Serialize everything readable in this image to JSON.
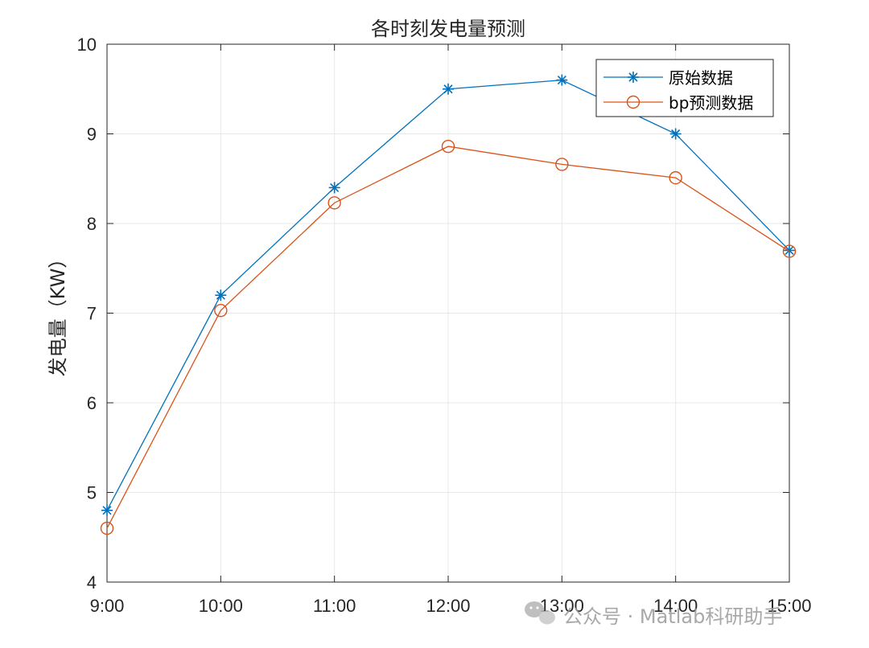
{
  "chart_data": {
    "type": "line",
    "title": "各时刻发电量预测",
    "xlabel": "",
    "ylabel": "发电量（KW）",
    "categories": [
      "9:00",
      "10:00",
      "11:00",
      "12:00",
      "13:00",
      "14:00",
      "15:00"
    ],
    "yticks": [
      "4",
      "5",
      "6",
      "7",
      "8",
      "9",
      "10"
    ],
    "ylim": [
      4,
      10
    ],
    "grid": true,
    "legend_position": "top-right",
    "series": [
      {
        "name": "原始数据",
        "marker": "asterisk",
        "color": "#0072BD",
        "values": [
          4.8,
          7.2,
          8.4,
          9.5,
          9.6,
          9.0,
          7.7
        ]
      },
      {
        "name": "bp预测数据",
        "marker": "circle",
        "color": "#D95319",
        "values": [
          4.6,
          7.03,
          8.23,
          8.86,
          8.66,
          8.51,
          7.69
        ]
      }
    ]
  },
  "watermark": {
    "text": "公众号 · Matlab科研助手",
    "icon": "wechat-icon"
  }
}
